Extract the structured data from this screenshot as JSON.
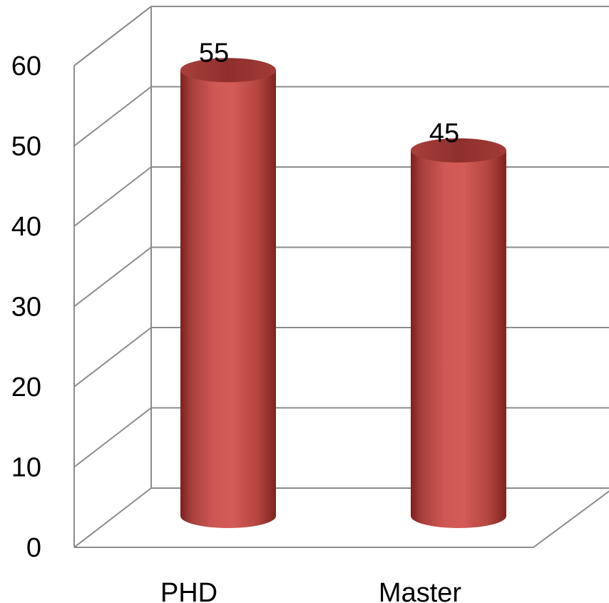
{
  "chart_data": {
    "type": "bar",
    "style": "3d-cylinder",
    "categories": [
      "PHD",
      "Master"
    ],
    "values": [
      55,
      45
    ],
    "data_labels": [
      "55",
      "45"
    ],
    "title": "",
    "xlabel": "",
    "ylabel": "",
    "ylim": [
      0,
      60
    ],
    "y_ticks": [
      0,
      10,
      20,
      30,
      40,
      50,
      60
    ],
    "y_tick_labels": [
      "0",
      "10",
      "20",
      "30",
      "40",
      "50",
      "60"
    ],
    "grid": true,
    "legend": "none",
    "bar_color": "#c0504d",
    "gridline_color": "#8c8c8c"
  }
}
